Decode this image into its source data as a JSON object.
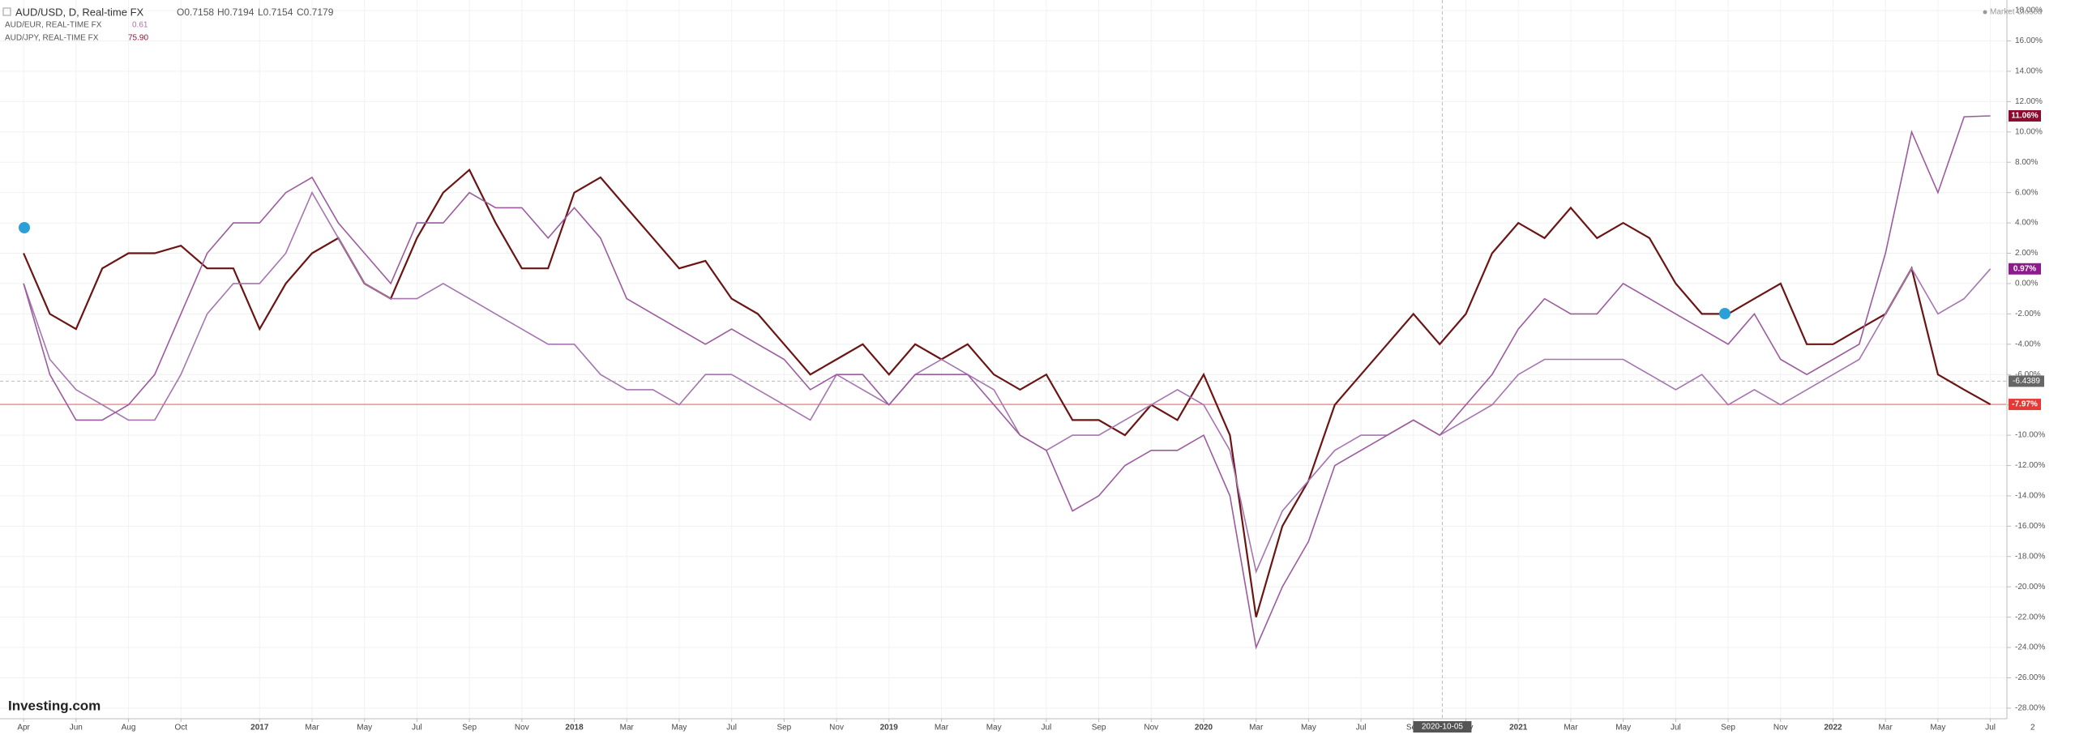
{
  "chart_data": {
    "type": "line",
    "title": "AUD/USD, D, Real-time FX",
    "ohlc": [
      "O0.7158",
      "H0.7194",
      "L0.7154",
      "C0.7179"
    ],
    "status": "Market Closed",
    "brand": "Investing.com",
    "x": [
      0,
      1,
      2,
      3,
      4,
      5,
      6,
      7,
      8,
      9,
      10,
      11,
      12,
      13,
      14,
      15,
      16,
      17,
      18,
      19,
      20,
      21,
      22,
      23,
      24,
      25,
      26,
      27,
      28,
      29,
      30,
      31,
      32,
      33,
      34,
      35,
      36,
      37,
      38,
      39,
      40,
      41,
      42,
      43,
      44,
      45,
      46,
      47,
      48,
      49,
      50,
      51,
      52,
      53,
      54,
      55,
      56,
      57,
      58,
      59,
      60,
      61,
      62,
      63,
      64,
      65,
      66,
      67,
      68,
      69,
      70,
      71,
      72,
      73,
      74,
      75
    ],
    "series": [
      {
        "name": "AUD/USD",
        "color": "#6b1414",
        "last_label": "-7.97%",
        "values": [
          2,
          -2,
          -3,
          1,
          2,
          2,
          2.5,
          1,
          1,
          -3,
          0,
          2,
          3,
          0,
          -1,
          3,
          6,
          7.5,
          4,
          1,
          1,
          6,
          7,
          5,
          3,
          1,
          1.5,
          -1,
          -2,
          -4,
          -6,
          -5,
          -4,
          -6,
          -4,
          -5,
          -4,
          -6,
          -7,
          -6,
          -9,
          -9,
          -10,
          -8,
          -9,
          -6,
          -10,
          -22,
          -16,
          -13,
          -8,
          -6,
          -4,
          -2,
          -4,
          -2,
          2,
          4,
          3,
          5,
          3,
          4,
          3,
          0,
          -2,
          -2,
          -1,
          0,
          -4,
          -4,
          -3,
          -2,
          1,
          -6,
          -7,
          -7.97
        ]
      },
      {
        "name": "AUD/EUR, REAL-TIME FX",
        "legend_value": "0.61",
        "color": "#a575b0",
        "last_label": "0.97%",
        "values": [
          0,
          -5,
          -7,
          -8,
          -9,
          -9,
          -6,
          -2,
          0,
          0,
          2,
          6,
          3,
          0,
          -1,
          -1,
          0,
          -1,
          -2,
          -3,
          -4,
          -4,
          -6,
          -7,
          -7,
          -8,
          -6,
          -6,
          -7,
          -8,
          -9,
          -6,
          -7,
          -8,
          -6,
          -5,
          -6,
          -7,
          -10,
          -11,
          -10,
          -10,
          -9,
          -8,
          -7,
          -8,
          -11,
          -19,
          -15,
          -13,
          -11,
          -10,
          -10,
          -9,
          -10,
          -9,
          -8,
          -6,
          -5,
          -5,
          -5,
          -5,
          -6,
          -7,
          -6,
          -8,
          -7,
          -8,
          -7,
          -6,
          -5,
          -2,
          1,
          -2,
          -1,
          0.97
        ]
      },
      {
        "name": "AUD/JPY, REAL-TIME FX",
        "legend_value": "75.90",
        "color": "#9c5b9e",
        "last_label": "11.06%",
        "values": [
          0,
          -6,
          -9,
          -9,
          -8,
          -6,
          -2,
          2,
          4,
          4,
          6,
          7,
          4,
          2,
          0,
          4,
          4,
          6,
          5,
          5,
          3,
          5,
          3,
          -1,
          -2,
          -3,
          -4,
          -3,
          -4,
          -5,
          -7,
          -6,
          -6,
          -8,
          -6,
          -6,
          -6,
          -8,
          -10,
          -11,
          -15,
          -14,
          -12,
          -11,
          -11,
          -10,
          -14,
          -24,
          -20,
          -17,
          -12,
          -11,
          -10,
          -9,
          -10,
          -8,
          -6,
          -3,
          -1,
          -2,
          -2,
          0,
          -1,
          -2,
          -3,
          -4,
          -2,
          -5,
          -6,
          -5,
          -4,
          2,
          10,
          6,
          11,
          11.06
        ]
      }
    ],
    "crosshair": {
      "x": 54.1,
      "x_label": "2020-10-05",
      "y": -6.4389
    },
    "xlim": [
      -0.9,
      75.6
    ],
    "xticks": [
      {
        "value": 0,
        "label": "Apr"
      },
      {
        "value": 2,
        "label": "Jun"
      },
      {
        "value": 4,
        "label": "Aug"
      },
      {
        "value": 6,
        "label": "Oct"
      },
      {
        "value": 9,
        "label": "2017"
      },
      {
        "value": 11,
        "label": "Mar"
      },
      {
        "value": 13,
        "label": "May"
      },
      {
        "value": 15,
        "label": "Jul"
      },
      {
        "value": 17,
        "label": "Sep"
      },
      {
        "value": 19,
        "label": "Nov"
      },
      {
        "value": 21,
        "label": "2018"
      },
      {
        "value": 23,
        "label": "Mar"
      },
      {
        "value": 25,
        "label": "May"
      },
      {
        "value": 27,
        "label": "Jul"
      },
      {
        "value": 29,
        "label": "Sep"
      },
      {
        "value": 31,
        "label": "Nov"
      },
      {
        "value": 33,
        "label": "2019"
      },
      {
        "value": 35,
        "label": "Mar"
      },
      {
        "value": 37,
        "label": "May"
      },
      {
        "value": 39,
        "label": "Jul"
      },
      {
        "value": 41,
        "label": "Sep"
      },
      {
        "value": 43,
        "label": "Nov"
      },
      {
        "value": 45,
        "label": "2020"
      },
      {
        "value": 47,
        "label": "Mar"
      },
      {
        "value": 49,
        "label": "May"
      },
      {
        "value": 51,
        "label": "Jul"
      },
      {
        "value": 53,
        "label": "Sep"
      },
      {
        "value": 55,
        "label": "Nov"
      },
      {
        "value": 57,
        "label": "2021"
      },
      {
        "value": 59,
        "label": "Mar"
      },
      {
        "value": 61,
        "label": "May"
      },
      {
        "value": 63,
        "label": "Jul"
      },
      {
        "value": 65,
        "label": "Sep"
      },
      {
        "value": 67,
        "label": "Nov"
      },
      {
        "value": 69,
        "label": "2022"
      },
      {
        "value": 71,
        "label": "Mar"
      },
      {
        "value": 73,
        "label": "May"
      },
      {
        "value": 75,
        "label": "Jul"
      },
      {
        "value": 76.7,
        "label": "2"
      }
    ],
    "ylim": [
      -28.7,
      18.7
    ],
    "yticks": [
      {
        "value": 18,
        "label": "18.00%"
      },
      {
        "value": 16,
        "label": "16.00%"
      },
      {
        "value": 14,
        "label": "14.00%"
      },
      {
        "value": 12,
        "label": "12.00%"
      },
      {
        "value": 10,
        "label": "10.00%"
      },
      {
        "value": 8,
        "label": "8.00%"
      },
      {
        "value": 6,
        "label": "6.00%"
      },
      {
        "value": 4,
        "label": "4.00%"
      },
      {
        "value": 2,
        "label": "2.00%"
      },
      {
        "value": 0,
        "label": "0.00%"
      },
      {
        "value": -2,
        "label": "-2.00%"
      },
      {
        "value": -4,
        "label": "-4.00%"
      },
      {
        "value": -6,
        "label": "-6.00%"
      },
      {
        "value": -8,
        "label": "-8.00%"
      },
      {
        "value": -10,
        "label": "-10.00%"
      },
      {
        "value": -12,
        "label": "-12.00%"
      },
      {
        "value": -14,
        "label": "-14.00%"
      },
      {
        "value": -16,
        "label": "-16.00%"
      },
      {
        "value": -18,
        "label": "-18.00%"
      },
      {
        "value": -20,
        "label": "-20.00%"
      },
      {
        "value": -22,
        "label": "-22.00%"
      },
      {
        "value": -24,
        "label": "-24.00%"
      },
      {
        "value": -26,
        "label": "-26.00%"
      },
      {
        "value": -28,
        "label": "-28.00%"
      }
    ],
    "grid": true
  }
}
